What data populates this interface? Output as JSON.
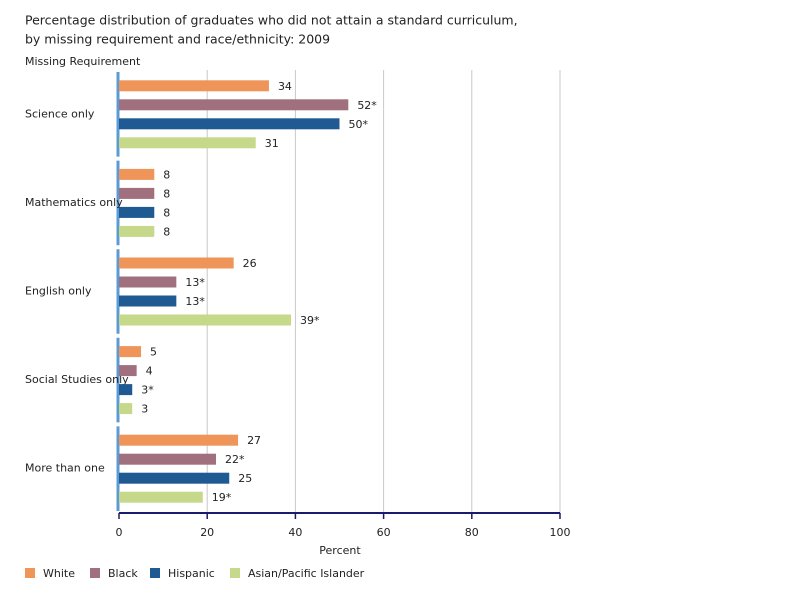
{
  "chart_data": {
    "type": "hbar",
    "title": [
      "Percentage distribution of graduates who did not attain a standard curriculum,",
      "by missing requirement and race/ethnicity: 2009"
    ],
    "y_label": "Missing Requirement",
    "x_label": "Percent",
    "categories": [
      "Science only",
      "Mathematics only",
      "English only",
      "Social Studies only",
      "More than one"
    ],
    "series": [
      {
        "name": "White",
        "color": "#f0955a",
        "values": [
          34,
          8,
          26,
          5,
          27
        ],
        "value_labels": [
          "34",
          "8",
          "26",
          "5",
          "27"
        ]
      },
      {
        "name": "Black",
        "color": "#a0707f",
        "values": [
          52,
          8,
          13,
          4,
          22
        ],
        "value_labels": [
          "52*",
          "8",
          "13*",
          "4",
          "22*"
        ]
      },
      {
        "name": "Hispanic",
        "color": "#1f5a92",
        "values": [
          50,
          8,
          13,
          3,
          25
        ],
        "value_labels": [
          "50*",
          "8",
          "13*",
          "3*",
          "25"
        ]
      },
      {
        "name": "Asian/Pacific Islander",
        "color": "#c6d98a",
        "values": [
          31,
          8,
          39,
          3,
          19
        ],
        "value_labels": [
          "31",
          "8",
          "39*",
          "3",
          "19*"
        ]
      }
    ],
    "xlim": [
      0,
      100
    ],
    "xticks": [
      0,
      20,
      40,
      60,
      80,
      100
    ],
    "grid": true
  }
}
